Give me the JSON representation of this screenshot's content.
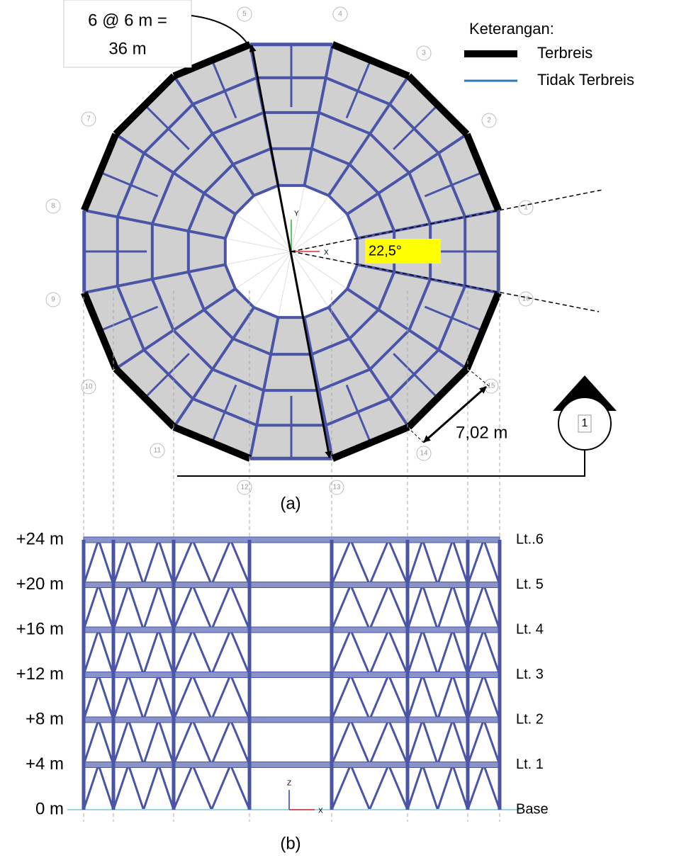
{
  "plan": {
    "dimension": [
      "6 @ 6 m =",
      "36 m"
    ],
    "angle": "22,5°",
    "edge_length": "7,02 m",
    "section": "1",
    "caption": "(a)",
    "axis_x": "X",
    "axis_y": "Y",
    "grid_labels": [
      "1",
      "2",
      "3",
      "4",
      "5",
      "7",
      "8",
      "9",
      "10",
      "11",
      "12",
      "13",
      "14",
      "15",
      "16"
    ]
  },
  "legend": {
    "title": "Keterangan:",
    "items": [
      "Terbreis",
      "Tidak Terbreis"
    ]
  },
  "elevation": {
    "levels": [
      {
        "height": "+24 m",
        "name": "Lt..6"
      },
      {
        "height": "+20 m",
        "name": "Lt. 5"
      },
      {
        "height": "+16 m",
        "name": "Lt. 4"
      },
      {
        "height": "+12 m",
        "name": "Lt. 3"
      },
      {
        "height": "+8 m",
        "name": "Lt. 2"
      },
      {
        "height": "+4 m",
        "name": "Lt. 1"
      },
      {
        "height": "0 m",
        "name": "Base"
      }
    ],
    "axis_z": "Z",
    "axis_x": "X",
    "caption": "(b)"
  }
}
